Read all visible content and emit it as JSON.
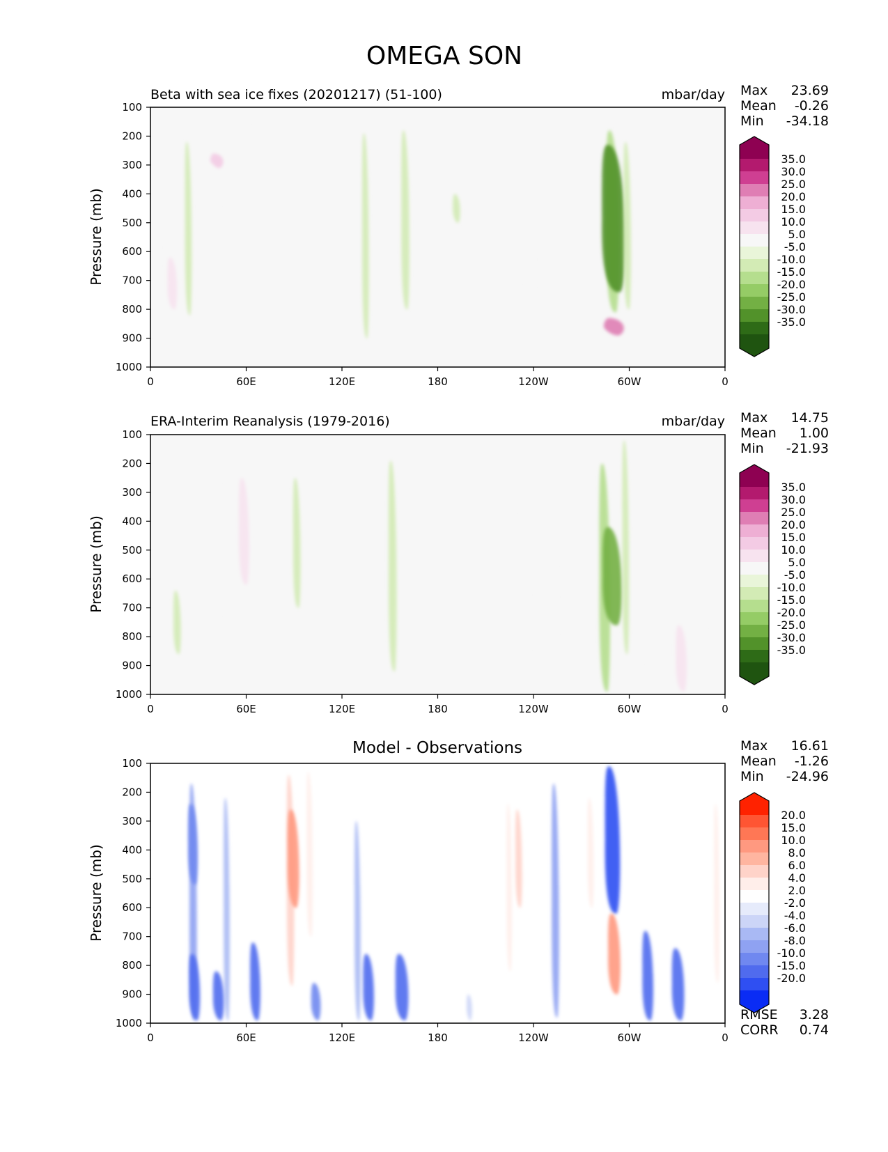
{
  "figure": {
    "title": "OMEGA SON"
  },
  "colors": {
    "panel_bg": "#f7f7f7",
    "diverging_pg": [
      "#8e0152",
      "#b31a6e",
      "#cf3f92",
      "#df7eb4",
      "#eeafd4",
      "#f3cbe4",
      "#f7e3ef",
      "#f7f7f7",
      "#e9f5d9",
      "#d3ebb5",
      "#b5de8e",
      "#95cc66",
      "#73b044",
      "#52922a",
      "#2e6b17",
      "#1f5410"
    ],
    "diverging_br": [
      "#ff2200",
      "#ff5533",
      "#ff7755",
      "#ff9980",
      "#ffb5a0",
      "#ffd3c9",
      "#ffeeea",
      "#ffffff",
      "#e6ebfb",
      "#ccd5f7",
      "#a9b9f4",
      "#8fa2f2",
      "#7088f0",
      "#506bee",
      "#2f4ff2",
      "#0a2cf5"
    ]
  },
  "axes": {
    "ylabel": "Pressure (mb)",
    "yticks": [
      "100",
      "200",
      "300",
      "400",
      "500",
      "600",
      "700",
      "800",
      "900",
      "1000"
    ],
    "xticks": [
      "0",
      "60E",
      "120E",
      "180",
      "120W",
      "60W",
      "0"
    ]
  },
  "panels": [
    {
      "title_left": "Beta with sea ice fixes (20201217) (51-100)",
      "title_right": "mbar/day",
      "title_center": "",
      "stats": [
        {
          "label": "Max",
          "value": "23.69"
        },
        {
          "label": "Mean",
          "value": "-0.26"
        },
        {
          "label": "Min",
          "value": "-34.18"
        }
      ],
      "colorbar_labels": [
        "35.0",
        "30.0",
        "25.0",
        "20.0",
        "15.0",
        "10.0",
        "5.0",
        "-5.0",
        "-10.0",
        "-15.0",
        "-20.0",
        "-25.0",
        "-30.0",
        "-35.0"
      ],
      "extra_stats": []
    },
    {
      "title_left": "ERA-Interim Reanalysis (1979-2016)",
      "title_right": "mbar/day",
      "title_center": "",
      "stats": [
        {
          "label": "Max",
          "value": "14.75"
        },
        {
          "label": "Mean",
          "value": "1.00"
        },
        {
          "label": "Min",
          "value": "-21.93"
        }
      ],
      "colorbar_labels": [
        "35.0",
        "30.0",
        "25.0",
        "20.0",
        "15.0",
        "10.0",
        "5.0",
        "-5.0",
        "-10.0",
        "-15.0",
        "-20.0",
        "-25.0",
        "-30.0",
        "-35.0"
      ],
      "extra_stats": []
    },
    {
      "title_left": "",
      "title_right": "",
      "title_center": "Model - Observations",
      "stats": [
        {
          "label": "Max",
          "value": "16.61"
        },
        {
          "label": "Mean",
          "value": "-1.26"
        },
        {
          "label": "Min",
          "value": "-24.96"
        }
      ],
      "colorbar_labels": [
        "20.0",
        "15.0",
        "10.0",
        "8.0",
        "6.0",
        "4.0",
        "2.0",
        "-2.0",
        "-4.0",
        "-6.0",
        "-8.0",
        "-10.0",
        "-15.0",
        "-20.0"
      ],
      "extra_stats": [
        {
          "label": "RMSE",
          "value": "3.28"
        },
        {
          "label": "CORR",
          "value": "0.74"
        }
      ]
    }
  ],
  "chart_data": [
    {
      "type": "heatmap",
      "title": "Beta with sea ice fixes (20201217) (51-100)",
      "units": "mbar/day",
      "xlabel": "",
      "ylabel": "Pressure (mb)",
      "xlim": [
        0,
        360
      ],
      "ylim": [
        1000,
        100
      ],
      "levels": [
        -35,
        -30,
        -25,
        -20,
        -15,
        -10,
        -5,
        5,
        10,
        15,
        20,
        25,
        30,
        35
      ],
      "features": [
        {
          "lon": 3,
          "p_top": 180,
          "p_bottom": 820,
          "value": 7
        },
        {
          "lon": 14,
          "p_top": 620,
          "p_bottom": 800,
          "value": 10
        },
        {
          "lon": 24,
          "p_top": 220,
          "p_bottom": 820,
          "value": -6
        },
        {
          "lon": 42,
          "p_top": 260,
          "p_bottom": 310,
          "value": 15
        },
        {
          "lon": 50,
          "p_top": 180,
          "p_bottom": 560,
          "value": 7
        },
        {
          "lon": 65,
          "p_top": 170,
          "p_bottom": 900,
          "value": 6
        },
        {
          "lon": 86,
          "p_top": 230,
          "p_bottom": 480,
          "value": 6
        },
        {
          "lon": 135,
          "p_top": 190,
          "p_bottom": 900,
          "value": -6
        },
        {
          "lon": 160,
          "p_top": 180,
          "p_bottom": 800,
          "value": -8
        },
        {
          "lon": 192,
          "p_top": 400,
          "p_bottom": 500,
          "value": -7
        },
        {
          "lon": 238,
          "p_top": 240,
          "p_bottom": 880,
          "value": 7
        },
        {
          "lon": 279,
          "p_top": 230,
          "p_bottom": 740,
          "value": 6
        },
        {
          "lon": 290,
          "p_top": 180,
          "p_bottom": 810,
          "value": -15
        },
        {
          "lon": 291,
          "p_top": 230,
          "p_bottom": 740,
          "value": -30
        },
        {
          "lon": 291,
          "p_top": 830,
          "p_bottom": 890,
          "value": 25
        },
        {
          "lon": 299,
          "p_top": 220,
          "p_bottom": 800,
          "value": -7
        },
        {
          "lon": 341,
          "p_top": 500,
          "p_bottom": 880,
          "value": 6
        },
        {
          "lon": 355,
          "p_top": 190,
          "p_bottom": 890,
          "value": 7
        }
      ]
    },
    {
      "type": "heatmap",
      "title": "ERA-Interim Reanalysis (1979-2016)",
      "units": "mbar/day",
      "xlabel": "",
      "ylabel": "Pressure (mb)",
      "xlim": [
        0,
        360
      ],
      "ylim": [
        1000,
        100
      ],
      "levels": [
        -35,
        -30,
        -25,
        -20,
        -15,
        -10,
        -5,
        5,
        10,
        15,
        20,
        25,
        30,
        35
      ],
      "features": [
        {
          "lon": 6,
          "p_top": 180,
          "p_bottom": 960,
          "value": 6
        },
        {
          "lon": 17,
          "p_top": 640,
          "p_bottom": 860,
          "value": -7
        },
        {
          "lon": 50,
          "p_top": 180,
          "p_bottom": 960,
          "value": 7
        },
        {
          "lon": 59,
          "p_top": 250,
          "p_bottom": 620,
          "value": 11
        },
        {
          "lon": 74,
          "p_top": 760,
          "p_bottom": 990,
          "value": 6
        },
        {
          "lon": 92,
          "p_top": 250,
          "p_bottom": 700,
          "value": -7
        },
        {
          "lon": 126,
          "p_top": 850,
          "p_bottom": 990,
          "value": 6
        },
        {
          "lon": 152,
          "p_top": 190,
          "p_bottom": 920,
          "value": -8
        },
        {
          "lon": 235,
          "p_top": 300,
          "p_bottom": 980,
          "value": 7
        },
        {
          "lon": 252,
          "p_top": 280,
          "p_bottom": 950,
          "value": 8
        },
        {
          "lon": 285,
          "p_top": 200,
          "p_bottom": 990,
          "value": -12
        },
        {
          "lon": 290,
          "p_top": 420,
          "p_bottom": 760,
          "value": -24
        },
        {
          "lon": 298,
          "p_top": 120,
          "p_bottom": 860,
          "value": -6
        },
        {
          "lon": 315,
          "p_top": 820,
          "p_bottom": 990,
          "value": 8
        },
        {
          "lon": 333,
          "p_top": 760,
          "p_bottom": 990,
          "value": 12
        },
        {
          "lon": 355,
          "p_top": 210,
          "p_bottom": 990,
          "value": 8
        }
      ]
    },
    {
      "type": "heatmap",
      "title": "Model - Observations",
      "units": "mbar/day",
      "xlabel": "",
      "ylabel": "Pressure (mb)",
      "xlim": [
        0,
        360
      ],
      "ylim": [
        1000,
        100
      ],
      "levels": [
        -20,
        -15,
        -10,
        -8,
        -6,
        -4,
        -2,
        2,
        4,
        6,
        8,
        10,
        15,
        20
      ],
      "features": [
        {
          "lon": 14,
          "p_top": 380,
          "p_bottom": 760,
          "value": 3
        },
        {
          "lon": 27,
          "p_top": 170,
          "p_bottom": 990,
          "value": -7
        },
        {
          "lon": 27,
          "p_top": 240,
          "p_bottom": 520,
          "value": -10
        },
        {
          "lon": 28,
          "p_top": 760,
          "p_bottom": 990,
          "value": -12
        },
        {
          "lon": 48,
          "p_top": 220,
          "p_bottom": 990,
          "value": -5
        },
        {
          "lon": 43,
          "p_top": 820,
          "p_bottom": 990,
          "value": -12
        },
        {
          "lon": 66,
          "p_top": 720,
          "p_bottom": 990,
          "value": -11
        },
        {
          "lon": 88,
          "p_top": 140,
          "p_bottom": 870,
          "value": 7
        },
        {
          "lon": 90,
          "p_top": 260,
          "p_bottom": 600,
          "value": 13
        },
        {
          "lon": 100,
          "p_top": 130,
          "p_bottom": 700,
          "value": 5
        },
        {
          "lon": 104,
          "p_top": 860,
          "p_bottom": 990,
          "value": -10
        },
        {
          "lon": 130,
          "p_top": 300,
          "p_bottom": 990,
          "value": -5
        },
        {
          "lon": 137,
          "p_top": 760,
          "p_bottom": 990,
          "value": -12
        },
        {
          "lon": 158,
          "p_top": 760,
          "p_bottom": 990,
          "value": -15
        },
        {
          "lon": 200,
          "p_top": 900,
          "p_bottom": 990,
          "value": -4
        },
        {
          "lon": 225,
          "p_top": 240,
          "p_bottom": 820,
          "value": 4
        },
        {
          "lon": 231,
          "p_top": 260,
          "p_bottom": 600,
          "value": 6
        },
        {
          "lon": 254,
          "p_top": 170,
          "p_bottom": 980,
          "value": -7
        },
        {
          "lon": 276,
          "p_top": 220,
          "p_bottom": 600,
          "value": 5
        },
        {
          "lon": 290,
          "p_top": 110,
          "p_bottom": 620,
          "value": -18
        },
        {
          "lon": 291,
          "p_top": 620,
          "p_bottom": 900,
          "value": 14
        },
        {
          "lon": 312,
          "p_top": 680,
          "p_bottom": 990,
          "value": -12
        },
        {
          "lon": 331,
          "p_top": 740,
          "p_bottom": 990,
          "value": -14
        },
        {
          "lon": 355,
          "p_top": 240,
          "p_bottom": 860,
          "value": 4
        }
      ]
    }
  ]
}
